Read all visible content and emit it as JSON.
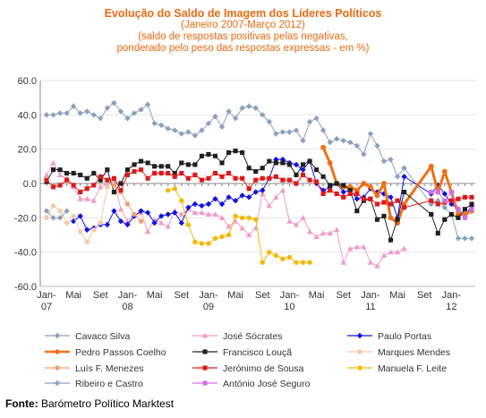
{
  "header": {
    "title": "Evolução do Saldo  de Imagem dos Líderes Políticos",
    "subtitle_1": "(Janeiro 2007-Março 2012)",
    "subtitle_2": "(saldo de respostas positivas pelas negativas,",
    "subtitle_3": "ponderado pelo peso das respostas expressas - em %)"
  },
  "footer": {
    "source_label": "Fonte:",
    "source_text": " Barómetro Político Marktest"
  },
  "chart_data": {
    "type": "line",
    "ylim": [
      -60,
      60
    ],
    "yticks": [
      "60.0",
      "40.0",
      "20.0",
      "0.0",
      "-20.0",
      "-40.0",
      "-60.0"
    ],
    "xlim": [
      0,
      63
    ],
    "x_month_labels": [
      {
        "x": 0,
        "label": "Jan-"
      },
      {
        "x": 4,
        "label": "Mai"
      },
      {
        "x": 8,
        "label": "Set"
      },
      {
        "x": 12,
        "label": "Jan-"
      },
      {
        "x": 16,
        "label": "Mai"
      },
      {
        "x": 20,
        "label": "Set"
      },
      {
        "x": 24,
        "label": "Jan-"
      },
      {
        "x": 28,
        "label": "Mai"
      },
      {
        "x": 32,
        "label": "Set"
      },
      {
        "x": 36,
        "label": "Jan-"
      },
      {
        "x": 40,
        "label": "Mai"
      },
      {
        "x": 44,
        "label": "Set"
      },
      {
        "x": 48,
        "label": "Jan-"
      },
      {
        "x": 52,
        "label": "Mai"
      },
      {
        "x": 56,
        "label": "Set"
      },
      {
        "x": 60,
        "label": "Jan-"
      }
    ],
    "x_year_labels": [
      {
        "x": 0,
        "label": "07"
      },
      {
        "x": 12,
        "label": "08"
      },
      {
        "x": 24,
        "label": "09"
      },
      {
        "x": 36,
        "label": "10"
      },
      {
        "x": 48,
        "label": "11"
      },
      {
        "x": 60,
        "label": "12"
      }
    ],
    "colors": {
      "axis": "#888888",
      "grid": "#e6e6e6"
    },
    "series": [
      {
        "name": "Cavaco Silva",
        "color": "#8BA0BE",
        "marker": "diamond",
        "width": 1,
        "x": [
          0,
          1,
          2,
          3,
          4,
          5,
          6,
          7,
          8,
          9,
          10,
          11,
          12,
          13,
          14,
          15,
          16,
          17,
          18,
          19,
          20,
          21,
          22,
          23,
          24,
          25,
          26,
          27,
          28,
          29,
          30,
          31,
          32,
          33,
          34,
          35,
          36,
          37,
          38,
          39,
          40,
          41,
          42,
          43,
          44,
          45,
          46,
          47,
          48,
          49,
          50,
          51,
          52,
          53,
          57,
          58,
          59,
          60,
          61,
          62,
          63
        ],
        "y": [
          40,
          40,
          41,
          41,
          45,
          41,
          42,
          40,
          38,
          44,
          47,
          42,
          38,
          41,
          43,
          46,
          35,
          34,
          32,
          31,
          29,
          30,
          28,
          31,
          35,
          39,
          33,
          42,
          38,
          44,
          45,
          44,
          40,
          36,
          29,
          30,
          30,
          31,
          25,
          36,
          38,
          31,
          24,
          26,
          25,
          24,
          22,
          17,
          29,
          22,
          13,
          14,
          4,
          9,
          -12,
          -10,
          -14,
          -18,
          -32,
          -32,
          -32
        ]
      },
      {
        "name": "José Sócrates",
        "color": "#F29AC8",
        "marker": "triangle",
        "width": 1,
        "x": [
          0,
          1,
          2,
          3,
          4,
          5,
          6,
          7,
          8,
          9,
          10,
          11,
          12,
          13,
          14,
          15,
          16,
          17,
          18,
          19,
          20,
          21,
          22,
          23,
          24,
          25,
          26,
          27,
          28,
          29,
          30,
          31,
          32,
          33,
          34,
          35,
          36,
          37,
          38,
          39,
          40,
          41,
          42,
          43,
          44,
          45,
          46,
          47,
          48,
          49,
          50,
          51,
          52,
          53
        ],
        "y": [
          5,
          12,
          5,
          3,
          -2,
          -9,
          -9,
          -10,
          -2,
          0,
          2,
          -15,
          -22,
          -18,
          -17,
          -28,
          -21,
          -23,
          -25,
          -16,
          -18,
          -15,
          -17,
          -17,
          -18,
          -18,
          -20,
          -25,
          -22,
          -26,
          -30,
          -26,
          -6,
          -13,
          -8,
          -4,
          -22,
          -24,
          -20,
          -28,
          -31,
          -29,
          -29,
          -27,
          -46,
          -38,
          -37,
          -37,
          -46,
          -48,
          -42,
          -40,
          -40,
          -38
        ]
      },
      {
        "name": "Paulo Portas",
        "color": "#1010E0",
        "marker": "diamond",
        "width": 1,
        "x": [
          4,
          5,
          6,
          7,
          8,
          9,
          10,
          11,
          12,
          13,
          14,
          15,
          16,
          17,
          18,
          19,
          20,
          21,
          22,
          23,
          24,
          25,
          26,
          27,
          28,
          29,
          30,
          31,
          32,
          33,
          34,
          35,
          36,
          37,
          38,
          39,
          40,
          41,
          42,
          43,
          44,
          45,
          46,
          47,
          48,
          49,
          50,
          51,
          52,
          53,
          57,
          58,
          59,
          60,
          61,
          62,
          63
        ],
        "y": [
          -22,
          -19,
          -27,
          -26,
          -24,
          -24,
          -16,
          -22,
          -24,
          -19,
          -16,
          -17,
          -23,
          -19,
          -18,
          -17,
          -23,
          -14,
          -12,
          -13,
          -12,
          -9,
          -12,
          -8,
          -10,
          -7,
          -8,
          -5,
          -4,
          3,
          14,
          14,
          12,
          11,
          8,
          13,
          0,
          -4,
          -2,
          0,
          -5,
          -4,
          -9,
          -8,
          -3,
          -5,
          -6,
          -8,
          -20,
          4,
          -6,
          -1,
          -6,
          -12,
          -15,
          -19,
          -13
        ]
      },
      {
        "name": "Pedro Passos Coelho",
        "color": "#F07018",
        "marker": "circle",
        "width": 3,
        "x": [
          41,
          42,
          43,
          44,
          45,
          46,
          47,
          48,
          49,
          50,
          51,
          52,
          53,
          57,
          58,
          59,
          60,
          61,
          62,
          63
        ],
        "y": [
          21,
          12,
          0,
          -2,
          -2,
          -4,
          0,
          -2,
          -7,
          0,
          -20,
          -23,
          -12,
          10,
          -5,
          7,
          -5,
          -18,
          -18,
          -16
        ]
      },
      {
        "name": "Francisco Louçã",
        "color": "#202020",
        "marker": "square",
        "width": 1,
        "x": [
          0,
          1,
          2,
          3,
          4,
          5,
          6,
          7,
          8,
          9,
          10,
          11,
          12,
          13,
          14,
          15,
          16,
          17,
          18,
          19,
          20,
          21,
          22,
          23,
          24,
          25,
          26,
          27,
          28,
          29,
          30,
          31,
          32,
          33,
          34,
          35,
          36,
          37,
          38,
          39,
          40,
          41,
          42,
          43,
          44,
          45,
          46,
          47,
          48,
          49,
          50,
          51,
          52,
          53,
          57,
          58,
          59,
          60,
          61,
          62,
          63
        ],
        "y": [
          1,
          8,
          8,
          6,
          6,
          5,
          3,
          6,
          2,
          8,
          -5,
          0,
          8,
          11,
          13,
          12,
          10,
          10,
          10,
          6,
          12,
          11,
          11,
          16,
          17,
          16,
          12,
          18,
          19,
          18,
          9,
          7,
          9,
          13,
          12,
          12,
          11,
          5,
          11,
          13,
          8,
          4,
          -1,
          0,
          -1,
          -4,
          -16,
          -10,
          -9,
          -21,
          -19,
          -33,
          -21,
          -5,
          -18,
          -29,
          -21,
          -18,
          -20,
          -15,
          -12
        ]
      },
      {
        "name": "Marques Mendes",
        "color": "#F8C8A8",
        "marker": "circle",
        "width": 1,
        "x": [
          0,
          1,
          2,
          3,
          4,
          5,
          6,
          7,
          8,
          9
        ],
        "y": [
          -20,
          -13,
          -16,
          -23,
          -19,
          -28,
          -34,
          -27,
          -23,
          -2
        ]
      },
      {
        "name": "Luís F. Menezes",
        "color": "#F0A070",
        "marker": "circle",
        "width": 1,
        "x": [
          9,
          10,
          11,
          12,
          13,
          14
        ],
        "y": [
          2,
          -1,
          -5,
          -12,
          -18,
          -22
        ]
      },
      {
        "name": "Jerónimo de Sousa",
        "color": "#E01818",
        "marker": "square",
        "width": 1,
        "x": [
          0,
          1,
          2,
          3,
          4,
          5,
          6,
          7,
          8,
          9,
          10,
          11,
          12,
          13,
          14,
          15,
          16,
          17,
          18,
          19,
          20,
          21,
          22,
          23,
          24,
          25,
          26,
          27,
          28,
          29,
          30,
          31,
          32,
          33,
          34,
          35,
          36,
          37,
          38,
          39,
          40,
          41,
          42,
          43,
          44,
          45,
          46,
          47,
          48,
          49,
          50,
          51,
          52,
          53,
          57,
          58,
          59,
          60,
          61,
          62,
          63
        ],
        "y": [
          2,
          -2,
          -1,
          2,
          -1,
          -5,
          -3,
          -1,
          4,
          2,
          3,
          -4,
          5,
          7,
          8,
          3,
          6,
          6,
          6,
          4,
          6,
          3,
          5,
          2,
          3,
          6,
          4,
          6,
          3,
          3,
          -3,
          2,
          3,
          3,
          4,
          2,
          2,
          0,
          5,
          2,
          1,
          -6,
          -4,
          -6,
          -8,
          -6,
          -6,
          -9,
          -9,
          -12,
          -11,
          -12,
          -10,
          -14,
          -10,
          -12,
          -11,
          -10,
          -9,
          -8,
          -8
        ]
      },
      {
        "name": "Manuela F. Leite",
        "color": "#F4B800",
        "marker": "circle",
        "width": 1,
        "x": [
          18,
          19,
          20,
          21,
          22,
          23,
          24,
          25,
          26,
          27,
          28,
          29,
          30,
          31,
          32,
          33,
          34,
          35,
          36,
          37,
          38,
          39
        ],
        "y": [
          -4,
          -3,
          -10,
          -24,
          -34,
          -35,
          -35,
          -32,
          -31,
          -30,
          -19,
          -20,
          -20,
          -21,
          -46,
          -40,
          -42,
          -44,
          -43,
          -46,
          -46,
          -46
        ]
      },
      {
        "name": "Ribeiro e Castro",
        "color": "#8BA0BE",
        "marker": "diamond",
        "width": 1,
        "x": [
          0,
          1,
          2,
          3
        ],
        "y": [
          -16,
          -20,
          -20,
          -16
        ]
      },
      {
        "name": "António José Seguro",
        "color": "#D070E0",
        "marker": "square",
        "width": 1,
        "x": [
          57,
          58,
          59,
          60,
          61,
          62,
          63
        ],
        "y": [
          -5,
          -5,
          -10,
          -5,
          -15,
          -20,
          -15
        ]
      }
    ]
  }
}
